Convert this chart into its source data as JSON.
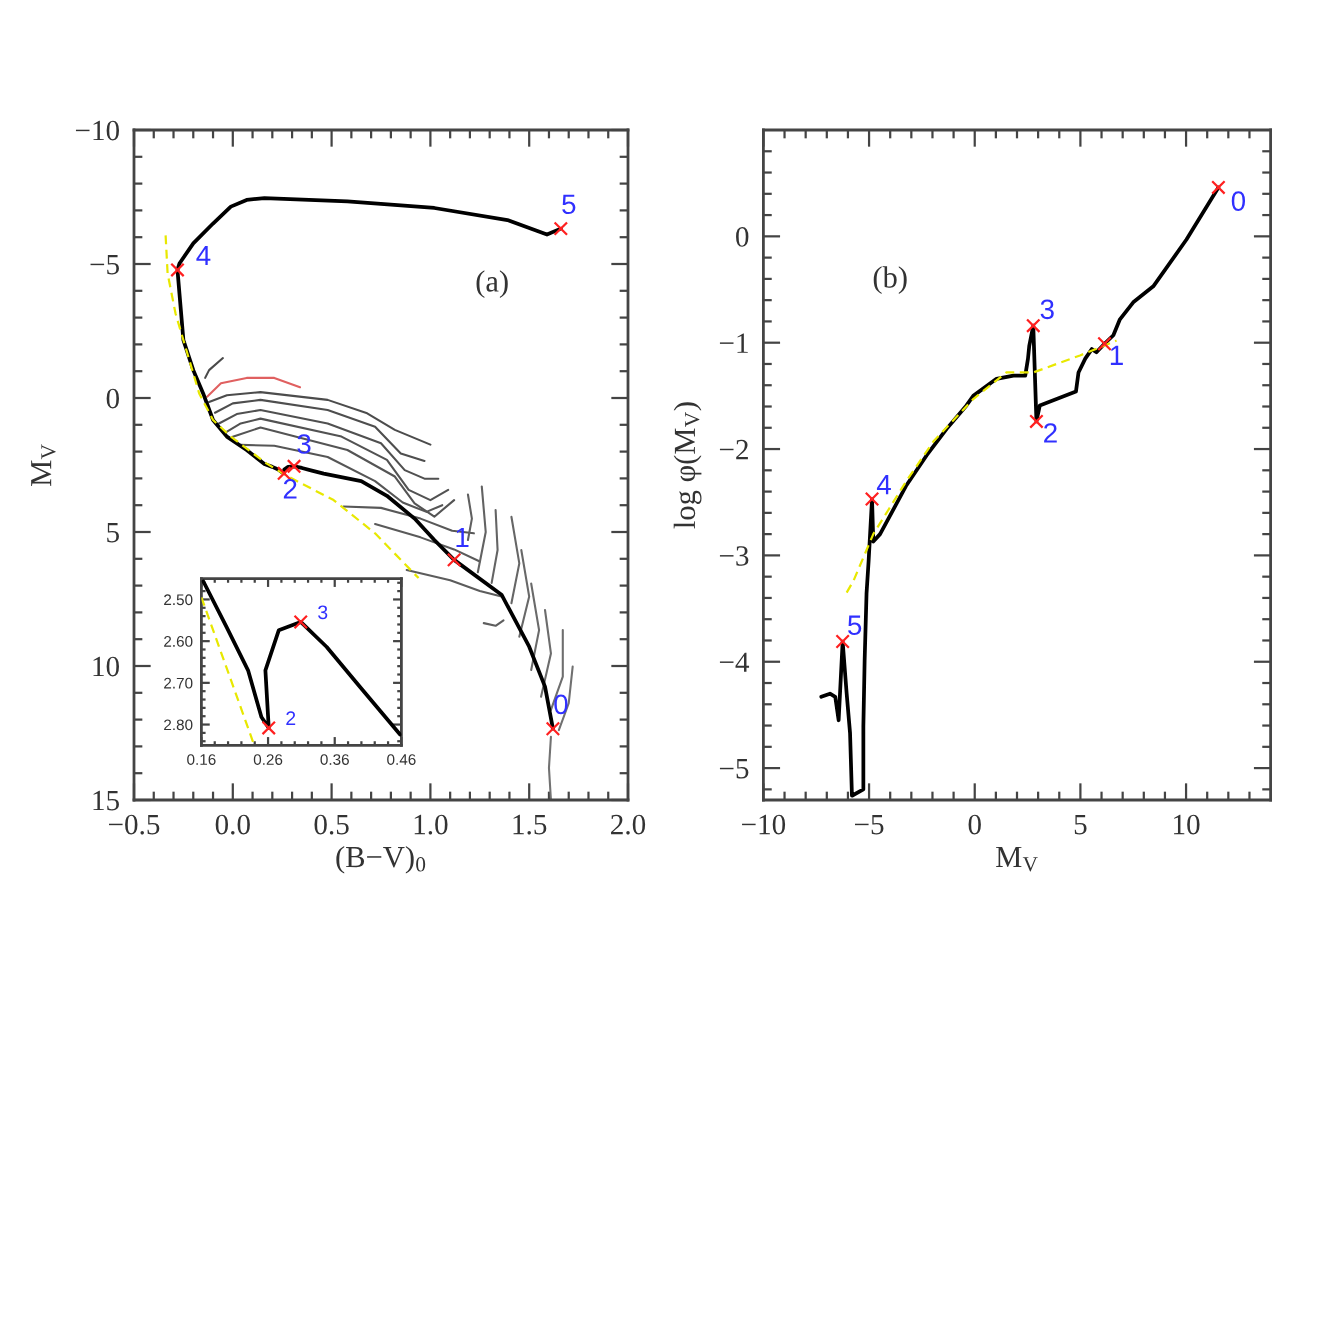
{
  "chart_data": [
    {
      "type": "line",
      "xlabel": "(B−V)$_{0}$",
      "ylabel": "M$_{V}$",
      "xlim": [
        -0.5,
        2.0
      ],
      "ylim": [
        15,
        -10
      ],
      "xticks": [
        -0.5,
        {
          "value": -0.4,
          "label": null
        },
        {
          "value": -0.3,
          "label": null
        },
        {
          "value": -0.2,
          "label": null
        },
        {
          "value": -0.1,
          "label": null
        },
        {
          "value": 0,
          "label": "0.0"
        },
        {
          "value": 0.1,
          "label": null
        },
        {
          "value": 0.2,
          "label": null
        },
        {
          "value": 0.3,
          "label": null
        },
        {
          "value": 0.4,
          "label": null
        },
        0.5,
        {
          "value": 0.6,
          "label": null
        },
        {
          "value": 0.7,
          "label": null
        },
        {
          "value": 0.8,
          "label": null
        },
        {
          "value": 0.9,
          "label": null
        },
        {
          "value": 1,
          "label": "1.0"
        },
        {
          "value": 1.1,
          "label": null
        },
        {
          "value": 1.2,
          "label": null
        },
        {
          "value": 1.3,
          "label": null
        },
        {
          "value": 1.4,
          "label": null
        },
        1.5,
        {
          "value": 1.6,
          "label": null
        },
        {
          "value": 1.7,
          "label": null
        },
        {
          "value": 1.8,
          "label": null
        },
        {
          "value": 1.9,
          "label": null
        },
        {
          "value": 2,
          "label": "2.0"
        }
      ],
      "yticks": [
        -10,
        {
          "value": -9,
          "label": null
        },
        {
          "value": -8,
          "label": null
        },
        {
          "value": -7,
          "label": null
        },
        {
          "value": -6,
          "label": null
        },
        -5,
        {
          "value": -4,
          "label": null
        },
        {
          "value": -3,
          "label": null
        },
        {
          "value": -2,
          "label": null
        },
        {
          "value": -1,
          "label": null
        },
        0,
        {
          "value": 1,
          "label": null
        },
        {
          "value": 2,
          "label": null
        },
        {
          "value": 3,
          "label": null
        },
        {
          "value": 4,
          "label": null
        },
        5,
        {
          "value": 6,
          "label": null
        },
        {
          "value": 7,
          "label": null
        },
        {
          "value": 8,
          "label": null
        },
        {
          "value": 9,
          "label": null
        },
        10,
        {
          "value": 11,
          "label": null
        },
        {
          "value": 12,
          "label": null
        },
        {
          "value": 13,
          "label": null
        },
        {
          "value": 14,
          "label": null
        },
        15
      ],
      "annotations": [
        "(a)",
        {
          "text": "0",
          "x": 1.62,
          "y": 12.34
        },
        {
          "text": "1",
          "x": 1.12,
          "y": 6.04
        },
        {
          "text": "2",
          "x": 0.26,
          "y": 2.81
        },
        {
          "text": "3",
          "x": 0.31,
          "y": 2.55
        },
        {
          "text": "4",
          "x": -0.28,
          "y": -4.78
        },
        {
          "text": "5",
          "x": 1.66,
          "y": -6.32
        }
      ],
      "series": [
        {
          "color": "#000000",
          "x": [
            1.62,
            1.58,
            1.5,
            1.36,
            1.12,
            1.02,
            0.92,
            0.78,
            0.65,
            0.46,
            0.4,
            0.35,
            0.31,
            0.28,
            0.26,
            0.26,
            0.25,
            0.23,
            0.2,
            0.16,
            0.07,
            -0.03,
            -0.1,
            -0.15,
            -0.2,
            -0.25,
            -0.27,
            -0.28,
            -0.27,
            -0.2,
            -0.1,
            -0.01,
            0.07,
            0.16,
            0.58,
            1.02,
            1.39,
            1.59,
            1.66
          ],
          "values": [
            12.34,
            10.77,
            9.28,
            7.34,
            6.04,
            5.3,
            4.5,
            3.65,
            3.1,
            2.82,
            2.71,
            2.61,
            2.55,
            2.57,
            2.67,
            2.81,
            2.78,
            2.67,
            2.57,
            2.46,
            1.94,
            1.44,
            0.82,
            -0.17,
            -1.04,
            -2.16,
            -3.9,
            -4.78,
            -5.02,
            -5.77,
            -6.51,
            -7.14,
            -7.39,
            -7.46,
            -7.34,
            -7.09,
            -6.64,
            -6.1,
            -6.32
          ]
        },
        {
          "color": "#e8e800",
          "line_style": "dashed",
          "x": [
            -0.34,
            -0.33,
            -0.29,
            -0.23,
            -0.17,
            -0.1,
            -0.01,
            0.17,
            0.28,
            0.51,
            0.72,
            0.94
          ],
          "values": [
            -6.07,
            -4.65,
            -3.16,
            -1.66,
            -0.17,
            0.82,
            1.44,
            2.44,
            2.93,
            3.81,
            5.05,
            6.72
          ]
        },
        {
          "color": "#4a4a4a",
          "x": [
            -0.14,
            -0.12,
            -0.05
          ],
          "values": [
            -0.75,
            -1.04,
            -1.49
          ]
        },
        {
          "color": "#e06060",
          "x": [
            -0.13,
            -0.06,
            0.07,
            0.21,
            0.34
          ],
          "values": [
            -0.05,
            -0.55,
            -0.75,
            -0.75,
            -0.4
          ]
        },
        {
          "color": "#4c4c4c",
          "x": [
            -0.12,
            -0.03,
            0.14,
            0.48,
            0.68,
            0.82,
            1.0
          ],
          "values": [
            0.15,
            -0.1,
            -0.22,
            0.07,
            0.57,
            1.19,
            1.74
          ]
        },
        {
          "color": "#4e4e4e",
          "x": [
            -0.09,
            0.0,
            0.14,
            0.48,
            0.72,
            0.85,
            0.97
          ],
          "values": [
            0.55,
            0.2,
            0.07,
            0.45,
            1.07,
            2.07,
            2.35
          ]
        },
        {
          "color": "#505050",
          "x": [
            -0.07,
            0.02,
            0.14,
            0.48,
            0.75,
            0.87,
            0.97,
            1.04
          ],
          "values": [
            0.95,
            0.6,
            0.45,
            0.95,
            1.69,
            2.69,
            3.01,
            3.01
          ]
        },
        {
          "color": "#525252",
          "x": [
            -0.04,
            0.04,
            0.14,
            0.55,
            0.78,
            0.89,
            1.0,
            1.09
          ],
          "values": [
            1.3,
            0.95,
            0.77,
            1.44,
            2.31,
            3.43,
            3.81,
            3.43
          ]
        },
        {
          "color": "#545454",
          "x": [
            0.0,
            0.14,
            0.58,
            0.82,
            0.92,
            1.02,
            1.12
          ],
          "values": [
            1.45,
            1.1,
            1.94,
            2.93,
            3.93,
            4.43,
            3.81
          ]
        },
        {
          "color": "#565656",
          "x": [
            0.04,
            0.21,
            0.48,
            0.72,
            0.86,
            0.98,
            1.06
          ],
          "values": [
            1.75,
            1.78,
            2.2,
            3.1,
            3.9,
            4.25,
            4.0
          ]
        },
        {
          "color": "#585858",
          "x": [
            0.56,
            0.75,
            0.95,
            1.11,
            1.22
          ],
          "values": [
            4.05,
            4.1,
            4.5,
            4.95,
            5.05
          ]
        },
        {
          "color": "#5a5a5a",
          "x": [
            0.72,
            0.95,
            1.12,
            1.25
          ],
          "values": [
            4.7,
            5.2,
            5.65,
            6.1
          ]
        },
        {
          "color": "#5c5c5c",
          "x": [
            0.88,
            1.1,
            1.25,
            1.36
          ],
          "values": [
            6.42,
            6.8,
            7.2,
            7.41
          ]
        },
        {
          "color": "#5e5e5e",
          "x": [
            1.27,
            1.33,
            1.37
          ],
          "values": [
            8.4,
            8.5,
            8.3
          ]
        },
        {
          "color": "#606060",
          "x": [
            1.19,
            1.21,
            1.19
          ],
          "values": [
            3.6,
            4.5,
            5.3
          ]
        },
        {
          "color": "#626262",
          "x": [
            1.26,
            1.28,
            1.24
          ],
          "values": [
            3.3,
            5.0,
            6.5
          ]
        },
        {
          "color": "#646464",
          "x": [
            1.33,
            1.34,
            1.31
          ],
          "values": [
            4.18,
            5.67,
            6.9
          ]
        },
        {
          "color": "#666666",
          "x": [
            1.41,
            1.45,
            1.41
          ],
          "values": [
            4.43,
            6.17,
            7.66
          ]
        },
        {
          "color": "#686868",
          "x": [
            1.46,
            1.5,
            1.45
          ],
          "values": [
            5.67,
            7.41,
            8.91
          ]
        },
        {
          "color": "#6a6a6a",
          "x": [
            1.51,
            1.55,
            1.51
          ],
          "values": [
            6.92,
            8.66,
            10.15
          ]
        },
        {
          "color": "#6c6c6c",
          "x": [
            1.58,
            1.61,
            1.56
          ],
          "values": [
            7.91,
            9.53,
            11.15
          ]
        },
        {
          "color": "#6e6e6e",
          "x": [
            1.67,
            1.67,
            1.61
          ],
          "values": [
            8.66,
            10.4,
            11.64
          ]
        },
        {
          "color": "#707070",
          "x": [
            1.72,
            1.7,
            1.65
          ],
          "values": [
            10.02,
            11.39,
            12.39
          ]
        },
        {
          "color": "#727272",
          "x": [
            1.61,
            1.6,
            1.61
          ],
          "values": [
            12.64,
            13.8,
            15.0
          ]
        },
        {
          "type": "scatter",
          "marker": "cross",
          "color": "#ff2020",
          "x": [
            1.62,
            1.12,
            0.26,
            0.31,
            -0.28,
            1.66
          ],
          "values": [
            12.34,
            6.04,
            2.81,
            2.55,
            -4.78,
            -6.32
          ]
        }
      ]
    },
    {
      "type": "line",
      "xlim": [
        0.16,
        0.46
      ],
      "ylim": [
        2.85,
        2.45
      ],
      "xticks": [
        0.16,
        {
          "value": 0.18,
          "label": null
        },
        {
          "value": 0.2,
          "label": null
        },
        {
          "value": 0.22,
          "label": null
        },
        {
          "value": 0.24,
          "label": null
        },
        0.26,
        {
          "value": 0.28,
          "label": null
        },
        {
          "value": 0.3,
          "label": null
        },
        {
          "value": 0.32,
          "label": null
        },
        {
          "value": 0.34,
          "label": null
        },
        0.36,
        {
          "value": 0.38,
          "label": null
        },
        {
          "value": 0.4,
          "label": null
        },
        {
          "value": 0.42,
          "label": null
        },
        {
          "value": 0.44,
          "label": null
        },
        0.46
      ],
      "yticks": [
        {
          "value": 2.46,
          "label": null
        },
        {
          "value": 2.48,
          "label": null
        },
        {
          "value": 2.5,
          "label": "2.50"
        },
        {
          "value": 2.52,
          "label": null
        },
        {
          "value": 2.54,
          "label": null
        },
        {
          "value": 2.56,
          "label": null
        },
        {
          "value": 2.58,
          "label": null
        },
        {
          "value": 2.6,
          "label": "2.60"
        },
        {
          "value": 2.62,
          "label": null
        },
        {
          "value": 2.64,
          "label": null
        },
        {
          "value": 2.66,
          "label": null
        },
        {
          "value": 2.68,
          "label": null
        },
        {
          "value": 2.7,
          "label": "2.70"
        },
        {
          "value": 2.72,
          "label": null
        },
        {
          "value": 2.74,
          "label": null
        },
        {
          "value": 2.76,
          "label": null
        },
        {
          "value": 2.78,
          "label": null
        },
        {
          "value": 2.8,
          "label": "2.80"
        },
        {
          "value": 2.82,
          "label": null
        },
        {
          "value": 2.84,
          "label": null
        }
      ],
      "annotations": [
        {
          "text": "2",
          "x": 0.261,
          "y": 2.808
        },
        {
          "text": "3",
          "x": 0.309,
          "y": 2.554
        }
      ],
      "series": [
        {
          "color": "#000000",
          "x": [
            0.163,
            0.198,
            0.23,
            0.25,
            0.261,
            0.256,
            0.276,
            0.309,
            0.348,
            0.398,
            0.458
          ],
          "values": [
            2.457,
            2.567,
            2.67,
            2.782,
            2.808,
            2.67,
            2.574,
            2.554,
            2.614,
            2.71,
            2.824
          ]
        },
        {
          "color": "#e8e800",
          "line_style": "dashed",
          "x": [
            0.16,
            0.238
          ],
          "values": [
            2.495,
            2.844
          ]
        },
        {
          "type": "scatter",
          "marker": "cross",
          "color": "#ff2020",
          "x": [
            0.261,
            0.309
          ],
          "values": [
            2.808,
            2.554
          ]
        }
      ]
    },
    {
      "type": "line",
      "xlabel": "M$_{V}$",
      "ylabel": "log φ(M$_{V}$)",
      "xlim": [
        -10,
        14
      ],
      "ylim": [
        -5.3,
        1.0
      ],
      "xticks": [
        -10,
        {
          "value": -9,
          "label": null
        },
        {
          "value": -8,
          "label": null
        },
        {
          "value": -7,
          "label": null
        },
        {
          "value": -6,
          "label": null
        },
        -5,
        {
          "value": -4,
          "label": null
        },
        {
          "value": -3,
          "label": null
        },
        {
          "value": -2,
          "label": null
        },
        {
          "value": -1,
          "label": null
        },
        0,
        {
          "value": 1,
          "label": null
        },
        {
          "value": 2,
          "label": null
        },
        {
          "value": 3,
          "label": null
        },
        {
          "value": 4,
          "label": null
        },
        5,
        {
          "value": 6,
          "label": null
        },
        {
          "value": 7,
          "label": null
        },
        {
          "value": 8,
          "label": null
        },
        {
          "value": 9,
          "label": null
        },
        10,
        {
          "value": 11,
          "label": null
        },
        {
          "value": 12,
          "label": null
        },
        {
          "value": 13,
          "label": null
        }
      ],
      "yticks": [
        {
          "value": -5.2,
          "label": null
        },
        -5,
        {
          "value": -4.8,
          "label": null
        },
        {
          "value": -4.6,
          "label": null
        },
        {
          "value": -4.4,
          "label": null
        },
        {
          "value": -4.2,
          "label": null
        },
        -4,
        {
          "value": -3.8,
          "label": null
        },
        {
          "value": -3.6,
          "label": null
        },
        {
          "value": -3.4,
          "label": null
        },
        {
          "value": -3.2,
          "label": null
        },
        -3,
        {
          "value": -2.8,
          "label": null
        },
        {
          "value": -2.6,
          "label": null
        },
        {
          "value": -2.4,
          "label": null
        },
        {
          "value": -2.2,
          "label": null
        },
        -2,
        {
          "value": -1.8,
          "label": null
        },
        {
          "value": -1.6,
          "label": null
        },
        {
          "value": -1.4,
          "label": null
        },
        {
          "value": -1.2,
          "label": null
        },
        -1,
        {
          "value": -0.8,
          "label": null
        },
        {
          "value": -0.6,
          "label": null
        },
        {
          "value": -0.4,
          "label": null
        },
        {
          "value": -0.2,
          "label": null
        },
        0,
        {
          "value": 0.2,
          "label": null
        },
        {
          "value": 0.4,
          "label": null
        },
        {
          "value": 0.6,
          "label": null
        },
        {
          "value": 0.8,
          "label": null
        }
      ],
      "annotations": [
        "(b)",
        {
          "text": "0",
          "x": 11.53,
          "y": 0.46
        },
        {
          "text": "1",
          "x": 6.14,
          "y": -1.01
        },
        {
          "text": "2",
          "x": 2.92,
          "y": -1.74
        },
        {
          "text": "3",
          "x": 2.77,
          "y": -0.84
        },
        {
          "text": "4",
          "x": -4.86,
          "y": -2.47
        },
        {
          "text": "5",
          "x": -6.25,
          "y": -3.81
        }
      ],
      "series": [
        {
          "color": "#000000",
          "x": [
            -7.26,
            -6.85,
            -6.6,
            -6.44,
            -6.25,
            -6.06,
            -5.9,
            -5.81,
            -5.27,
            -5.27,
            -5.21,
            -5.12,
            -5.02,
            -4.86,
            -4.8,
            -4.48,
            -3.23,
            -2.28,
            -1.33,
            -0.39,
            -0.07,
            1.03,
            1.83,
            2.39,
            2.52,
            2.58,
            2.77,
            2.92,
            3.08,
            4.79,
            4.91,
            5.23,
            5.54,
            5.76,
            6.14,
            6.56,
            6.87,
            7.5,
            8.45,
            10.02,
            11.53
          ],
          "values": [
            -4.33,
            -4.3,
            -4.33,
            -4.55,
            -3.81,
            -4.3,
            -4.67,
            -5.26,
            -5.2,
            -4.61,
            -3.99,
            -3.36,
            -3.05,
            -2.47,
            -2.87,
            -2.8,
            -2.34,
            -2.06,
            -1.81,
            -1.59,
            -1.5,
            -1.34,
            -1.31,
            -1.31,
            -1.15,
            -1.03,
            -0.84,
            -1.74,
            -1.59,
            -1.46,
            -1.28,
            -1.15,
            -1.06,
            -1.09,
            -1.01,
            -0.93,
            -0.78,
            -0.62,
            -0.47,
            -0.03,
            0.46
          ]
        },
        {
          "color": "#e8e800",
          "line_style": "dashed",
          "x": [
            -6.06,
            -5.74,
            -4.8,
            -3.23,
            -1.96,
            -0.07,
            1.5,
            2.77,
            4.98,
            6.71
          ],
          "values": [
            -3.35,
            -3.24,
            -2.8,
            -2.3,
            -1.93,
            -1.53,
            -1.28,
            -1.28,
            -1.12,
            -0.98
          ]
        },
        {
          "type": "scatter",
          "marker": "cross",
          "color": "#ff2020",
          "x": [
            11.53,
            6.14,
            2.92,
            2.77,
            -4.86,
            -6.25
          ],
          "values": [
            0.46,
            -1.01,
            -1.74,
            -0.84,
            -2.47,
            -3.81
          ]
        }
      ]
    }
  ]
}
